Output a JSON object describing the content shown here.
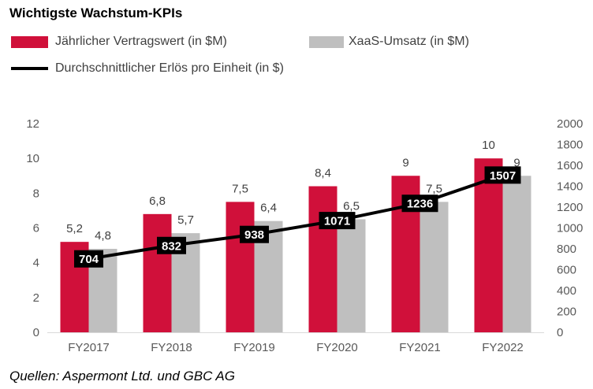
{
  "source": "Quellen: Aspermont Ltd. und GBC AG",
  "chart_data": {
    "type": "bar",
    "title": "Wichtigste Wachstum-KPIs",
    "categories": [
      "FY2017",
      "FY2018",
      "FY2019",
      "FY2020",
      "FY2021",
      "FY2022"
    ],
    "series": [
      {
        "name": "Jährlicher Vertragswert (in $M)",
        "type": "bar",
        "y_axis": "primary",
        "color": "#D0103A",
        "values": [
          5.2,
          6.8,
          7.5,
          8.4,
          9,
          10
        ],
        "labels": [
          "5,2",
          "6,8",
          "7,5",
          "8,4",
          "9",
          "10"
        ]
      },
      {
        "name": "XaaS-Umsatz (in $M)",
        "type": "bar",
        "y_axis": "primary",
        "color": "#BFBFBF",
        "values": [
          4.8,
          5.7,
          6.4,
          6.5,
          7.5,
          9
        ],
        "labels": [
          "4,8",
          "5,7",
          "6,4",
          "6,5",
          "7,5",
          "9"
        ]
      },
      {
        "name": "Durchschnittlicher Erlös pro Einheit (in $)",
        "type": "line",
        "y_axis": "secondary",
        "color": "#000000",
        "values": [
          704,
          832,
          938,
          1071,
          1236,
          1507
        ],
        "labels": [
          "704",
          "832",
          "938",
          "1071",
          "1236",
          "1507"
        ]
      }
    ],
    "ylim": [
      0,
      12
    ],
    "yticks": [
      0,
      2,
      4,
      6,
      8,
      10,
      12
    ],
    "y2lim": [
      0,
      2000
    ],
    "y2ticks": [
      0,
      200,
      400,
      600,
      800,
      1000,
      1200,
      1400,
      1600,
      1800,
      2000
    ],
    "grid": false,
    "legend_position": "top-left"
  }
}
